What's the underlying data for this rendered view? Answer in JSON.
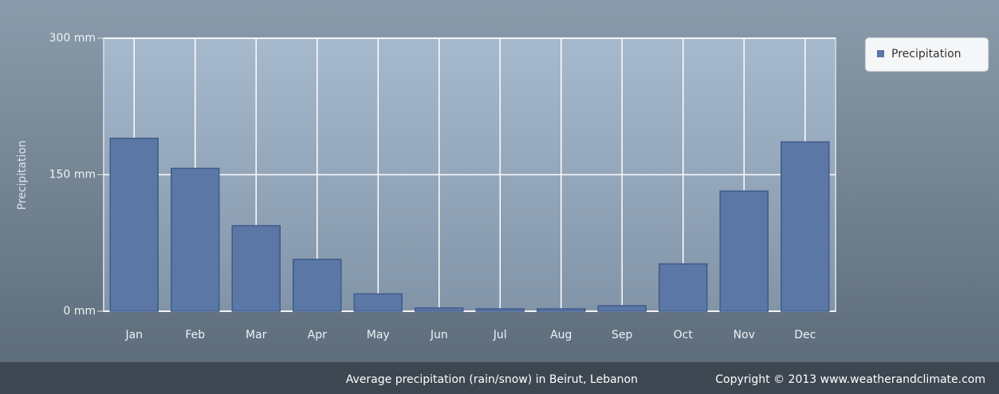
{
  "chart_data": {
    "type": "bar",
    "y_axis_label": "Precipitation",
    "categories": [
      "Jan",
      "Feb",
      "Mar",
      "Apr",
      "May",
      "Jun",
      "Jul",
      "Aug",
      "Sep",
      "Oct",
      "Nov",
      "Dec"
    ],
    "series": [
      {
        "name": "Precipitation",
        "color": "#5a77a5",
        "values": [
          190,
          157,
          94,
          57,
          19,
          3.5,
          2.6,
          2.6,
          6,
          52,
          132,
          186
        ]
      }
    ],
    "ylim": [
      0,
      300
    ],
    "yticks": [
      {
        "value": 0,
        "label": "0 mm"
      },
      {
        "value": 150,
        "label": "150 mm"
      },
      {
        "value": 300,
        "label": "300 mm"
      }
    ],
    "grid": true,
    "legend": "right",
    "caption": "Average precipitation (rain/snow) in Beirut, Lebanon",
    "copyright": "Copyright © 2013 www.weatherandclimate.com"
  }
}
